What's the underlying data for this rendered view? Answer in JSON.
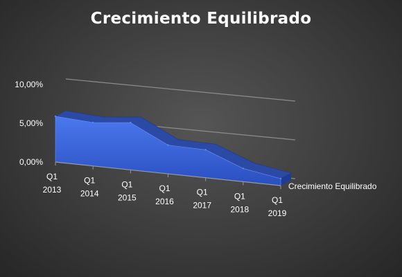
{
  "chart_data": {
    "type": "area",
    "title": "Crecimiento Equilibrado",
    "xlabel": "",
    "ylabel": "",
    "categories": [
      [
        "Q1",
        "2013"
      ],
      [
        "Q1",
        "2014"
      ],
      [
        "Q1",
        "2015"
      ],
      [
        "Q1",
        "2016"
      ],
      [
        "Q1",
        "2017"
      ],
      [
        "Q1",
        "2018"
      ],
      [
        "Q1",
        "2019"
      ]
    ],
    "series": [
      {
        "name": "Crecimiento Equilibrado",
        "values": [
          5.9,
          5.6,
          6.1,
          3.7,
          3.6,
          1.7,
          0.9
        ],
        "color": "#3a64d8"
      }
    ],
    "yticks": [
      "0,00%",
      "5,00%",
      "10,00%"
    ],
    "ylim": [
      0,
      10
    ],
    "grid": true,
    "legend": "right",
    "style": "3d"
  }
}
